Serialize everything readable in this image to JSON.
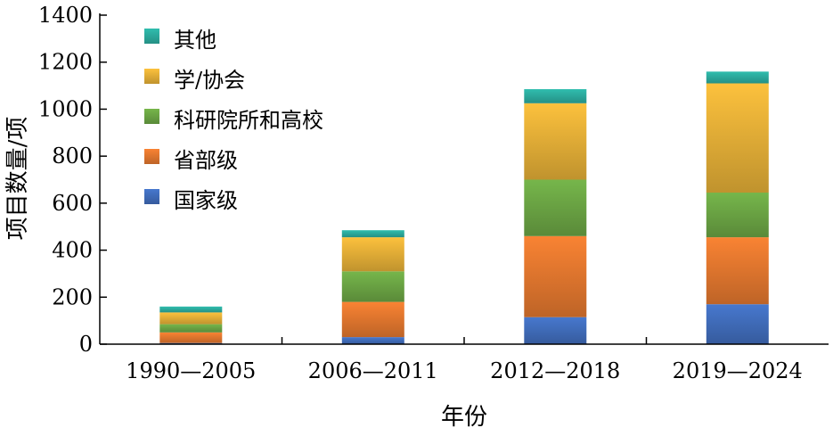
{
  "chart_data": {
    "type": "bar",
    "stacked": true,
    "xlabel": "年份",
    "ylabel": "项目数量/项",
    "ylim": [
      0,
      1400
    ],
    "yticks": [
      0,
      200,
      400,
      600,
      800,
      1000,
      1200,
      1400
    ],
    "categories": [
      "1990—2005",
      "2006—2011",
      "2012—2018",
      "2019—2024"
    ],
    "legend_position": "top-left",
    "grid": false,
    "series": [
      {
        "name": "国家级",
        "color": "#4472c4",
        "values": [
          5,
          30,
          115,
          170
        ]
      },
      {
        "name": "省部级",
        "color": "#ed7d31",
        "values": [
          45,
          150,
          345,
          285
        ]
      },
      {
        "name": "科研院所和高校",
        "color": "#70ad47",
        "values": [
          35,
          130,
          240,
          190
        ]
      },
      {
        "name": "学/协会",
        "color": "#f0b83a",
        "values": [
          50,
          145,
          325,
          465
        ]
      },
      {
        "name": "其他",
        "color": "#2eb4a6",
        "values": [
          25,
          30,
          60,
          50
        ]
      }
    ]
  }
}
